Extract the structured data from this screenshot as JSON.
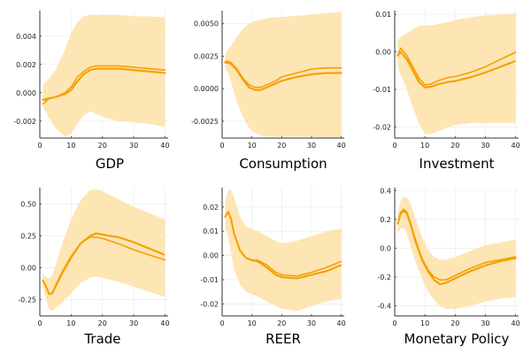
{
  "chart_data": [
    {
      "type": "line",
      "title": "",
      "xlabel": "GDP",
      "ylabel": "",
      "xlim": [
        0,
        41
      ],
      "ylim": [
        -0.0032,
        0.0058
      ],
      "xticks": [
        "0",
        "10",
        "20",
        "30",
        "40"
      ],
      "xtick_values": [
        0,
        10,
        20,
        30,
        40
      ],
      "yticks": [
        "-0.002",
        "0.000",
        "0.002",
        "0.004"
      ],
      "ytick_values": [
        -0.002,
        0,
        0.002,
        0.004
      ],
      "grid": true,
      "x": [
        1,
        3,
        5,
        8,
        10,
        12,
        14,
        16,
        18,
        20,
        25,
        30,
        35,
        40
      ],
      "series": [
        {
          "role": "median",
          "style": "solid",
          "values": [
            -0.0008,
            -0.0004,
            -0.0003,
            0.0,
            0.0004,
            0.0011,
            0.0015,
            0.0018,
            0.0019,
            0.0019,
            0.0019,
            0.0018,
            0.0017,
            0.0016
          ]
        },
        {
          "role": "estimate",
          "style": "dotted",
          "values": [
            -0.0005,
            -0.0004,
            -0.0003,
            -0.0001,
            0.0002,
            0.0008,
            0.0013,
            0.0016,
            0.0017,
            0.0017,
            0.0017,
            0.0016,
            0.0015,
            0.0014
          ]
        },
        {
          "role": "lower-band",
          "style": "band",
          "values": [
            -0.001,
            -0.0018,
            -0.0025,
            -0.0031,
            -0.0029,
            -0.0022,
            -0.0016,
            -0.0013,
            -0.0015,
            -0.0017,
            -0.002,
            -0.0021,
            -0.0022,
            -0.0024
          ]
        },
        {
          "role": "upper-band",
          "style": "band",
          "values": [
            0.0006,
            0.001,
            0.0016,
            0.003,
            0.0042,
            0.005,
            0.0054,
            0.0055,
            0.0055,
            0.0055,
            0.0055,
            0.0054,
            0.0054,
            0.0053
          ]
        }
      ]
    },
    {
      "type": "line",
      "title": "",
      "xlabel": "Consumption",
      "ylabel": "",
      "xlim": [
        0,
        41
      ],
      "ylim": [
        -0.0038,
        0.006
      ],
      "xticks": [
        "0",
        "10",
        "20",
        "30",
        "40"
      ],
      "xtick_values": [
        0,
        10,
        20,
        30,
        40
      ],
      "yticks": [
        "-0.0025",
        "0.0000",
        "0.0025",
        "0.0050"
      ],
      "ytick_values": [
        -0.0025,
        0,
        0.0025,
        0.005
      ],
      "grid": true,
      "x": [
        1,
        2,
        3,
        5,
        7,
        9,
        11,
        13,
        15,
        18,
        20,
        25,
        30,
        35,
        40
      ],
      "series": [
        {
          "role": "median",
          "style": "solid",
          "values": [
            0.0021,
            0.0021,
            0.002,
            0.0015,
            0.0008,
            0.0003,
            0.0001,
            0.0001,
            0.0003,
            0.0006,
            0.0009,
            0.0012,
            0.0015,
            0.0016,
            0.0016
          ]
        },
        {
          "role": "estimate",
          "style": "dotted",
          "values": [
            0.002,
            0.002,
            0.0019,
            0.0014,
            0.0007,
            0.0001,
            -0.0001,
            -0.0001,
            0.0001,
            0.0004,
            0.0006,
            0.0009,
            0.0011,
            0.0012,
            0.0012
          ]
        },
        {
          "role": "lower-band",
          "style": "band",
          "values": [
            0.0016,
            0.0012,
            0.0005,
            -0.001,
            -0.0022,
            -0.003,
            -0.0034,
            -0.0036,
            -0.0037,
            -0.0037,
            -0.0037,
            -0.0037,
            -0.0037,
            -0.0038,
            -0.0038
          ]
        },
        {
          "role": "upper-band",
          "style": "band",
          "values": [
            0.0027,
            0.003,
            0.0033,
            0.004,
            0.0046,
            0.005,
            0.0052,
            0.0053,
            0.0054,
            0.0055,
            0.0055,
            0.0056,
            0.0057,
            0.0058,
            0.0059
          ]
        }
      ]
    },
    {
      "type": "line",
      "title": "",
      "xlabel": "Investment",
      "ylabel": "",
      "xlim": [
        0,
        41
      ],
      "ylim": [
        -0.023,
        0.011
      ],
      "xticks": [
        "0",
        "10",
        "20",
        "30",
        "40"
      ],
      "xtick_values": [
        0,
        10,
        20,
        30,
        40
      ],
      "yticks": [
        "-0.02",
        "-0.01",
        "0.00",
        "0.01"
      ],
      "ytick_values": [
        -0.02,
        -0.01,
        0,
        0.01
      ],
      "grid": true,
      "x": [
        1,
        2,
        4,
        6,
        8,
        10,
        12,
        15,
        18,
        20,
        25,
        30,
        35,
        40
      ],
      "series": [
        {
          "role": "median",
          "style": "solid",
          "values": [
            -0.001,
            0.001,
            -0.001,
            -0.004,
            -0.007,
            -0.0088,
            -0.0086,
            -0.0075,
            -0.0068,
            -0.0066,
            -0.0055,
            -0.004,
            -0.002,
            -0.0001
          ]
        },
        {
          "role": "estimate",
          "style": "dotted",
          "values": [
            -0.001,
            0.0,
            -0.002,
            -0.005,
            -0.008,
            -0.0095,
            -0.0093,
            -0.0085,
            -0.008,
            -0.0078,
            -0.0068,
            -0.0055,
            -0.004,
            -0.0024
          ]
        },
        {
          "role": "lower-band",
          "style": "band",
          "values": [
            -0.004,
            -0.006,
            -0.01,
            -0.015,
            -0.019,
            -0.022,
            -0.022,
            -0.021,
            -0.02,
            -0.0195,
            -0.019,
            -0.019,
            -0.019,
            -0.019
          ]
        },
        {
          "role": "upper-band",
          "style": "band",
          "values": [
            0.003,
            0.004,
            0.005,
            0.006,
            0.007,
            0.007,
            0.007,
            0.0075,
            0.008,
            0.0085,
            0.0092,
            0.0097,
            0.01,
            0.0103
          ]
        }
      ]
    },
    {
      "type": "line",
      "title": "",
      "xlabel": "Trade",
      "ylabel": "",
      "xlim": [
        0,
        41
      ],
      "ylim": [
        -0.38,
        0.63
      ],
      "xticks": [
        "0",
        "10",
        "20",
        "30",
        "40"
      ],
      "xtick_values": [
        0,
        10,
        20,
        30,
        40
      ],
      "yticks": [
        "-0.25",
        "0.00",
        "0.25",
        "0.50"
      ],
      "ytick_values": [
        -0.25,
        0,
        0.25,
        0.5
      ],
      "grid": true,
      "x": [
        1,
        2,
        3,
        4,
        5,
        7,
        10,
        13,
        16,
        18,
        20,
        25,
        30,
        35,
        40
      ],
      "series": [
        {
          "role": "median",
          "style": "solid",
          "values": [
            -0.1,
            -0.15,
            -0.21,
            -0.2,
            -0.14,
            -0.04,
            0.09,
            0.19,
            0.24,
            0.24,
            0.23,
            0.19,
            0.14,
            0.1,
            0.06
          ]
        },
        {
          "role": "estimate",
          "style": "dotted",
          "values": [
            -0.1,
            -0.15,
            -0.21,
            -0.2,
            -0.15,
            -0.05,
            0.08,
            0.19,
            0.25,
            0.27,
            0.26,
            0.24,
            0.2,
            0.15,
            0.1
          ]
        },
        {
          "role": "lower-band",
          "style": "band",
          "values": [
            -0.15,
            -0.25,
            -0.33,
            -0.34,
            -0.32,
            -0.28,
            -0.2,
            -0.12,
            -0.08,
            -0.07,
            -0.08,
            -0.11,
            -0.15,
            -0.19,
            -0.23
          ]
        },
        {
          "role": "upper-band",
          "style": "band",
          "values": [
            -0.05,
            -0.07,
            -0.09,
            -0.06,
            0.02,
            0.18,
            0.38,
            0.53,
            0.61,
            0.62,
            0.6,
            0.54,
            0.48,
            0.43,
            0.38
          ]
        }
      ]
    },
    {
      "type": "line",
      "title": "",
      "xlabel": "REER",
      "ylabel": "",
      "xlim": [
        0,
        41
      ],
      "ylim": [
        -0.025,
        0.028
      ],
      "xticks": [
        "0",
        "10",
        "20",
        "30",
        "40"
      ],
      "xtick_values": [
        0,
        10,
        20,
        30,
        40
      ],
      "yticks": [
        "-0.02",
        "-0.01",
        "0.00",
        "0.01",
        "0.02"
      ],
      "ytick_values": [
        -0.02,
        -0.01,
        0,
        0.01,
        0.02
      ],
      "grid": true,
      "x": [
        1,
        2,
        3,
        4,
        6,
        8,
        10,
        12,
        15,
        18,
        20,
        25,
        30,
        35,
        40
      ],
      "series": [
        {
          "role": "median",
          "style": "solid",
          "values": [
            0.016,
            0.018,
            0.015,
            0.009,
            0.002,
            -0.001,
            -0.002,
            -0.002,
            -0.004,
            -0.007,
            -0.008,
            -0.0085,
            -0.007,
            -0.005,
            -0.0025
          ]
        },
        {
          "role": "estimate",
          "style": "dotted",
          "values": [
            0.016,
            0.018,
            0.015,
            0.009,
            0.002,
            -0.001,
            -0.002,
            -0.0025,
            -0.005,
            -0.008,
            -0.009,
            -0.0095,
            -0.008,
            -0.0065,
            -0.004
          ]
        },
        {
          "role": "lower-band",
          "style": "band",
          "values": [
            0.011,
            0.008,
            0.001,
            -0.006,
            -0.012,
            -0.015,
            -0.016,
            -0.017,
            -0.019,
            -0.021,
            -0.022,
            -0.023,
            -0.021,
            -0.019,
            -0.018
          ]
        },
        {
          "role": "upper-band",
          "style": "band",
          "values": [
            0.022,
            0.027,
            0.027,
            0.024,
            0.016,
            0.012,
            0.011,
            0.01,
            0.008,
            0.006,
            0.005,
            0.006,
            0.008,
            0.01,
            0.011
          ]
        }
      ]
    },
    {
      "type": "line",
      "title": "",
      "xlabel": "Monetary Policy",
      "ylabel": "",
      "xlim": [
        0,
        41
      ],
      "ylim": [
        -0.47,
        0.42
      ],
      "xticks": [
        "0",
        "10",
        "20",
        "30",
        "40"
      ],
      "xtick_values": [
        0,
        10,
        20,
        30,
        40
      ],
      "yticks": [
        "-0.4",
        "-0.2",
        "0.0",
        "0.2",
        "0.4"
      ],
      "ytick_values": [
        -0.4,
        -0.2,
        0,
        0.2,
        0.4
      ],
      "grid": true,
      "x": [
        1,
        2,
        3,
        4,
        5,
        7,
        9,
        11,
        13,
        15,
        17,
        20,
        25,
        30,
        35,
        40
      ],
      "series": [
        {
          "role": "median",
          "style": "solid",
          "values": [
            0.17,
            0.25,
            0.27,
            0.25,
            0.19,
            0.05,
            -0.07,
            -0.15,
            -0.2,
            -0.22,
            -0.22,
            -0.19,
            -0.14,
            -0.1,
            -0.08,
            -0.06
          ]
        },
        {
          "role": "estimate",
          "style": "dotted",
          "values": [
            0.17,
            0.24,
            0.26,
            0.24,
            0.18,
            0.04,
            -0.08,
            -0.16,
            -0.22,
            -0.25,
            -0.24,
            -0.21,
            -0.16,
            -0.12,
            -0.09,
            -0.07
          ]
        },
        {
          "role": "lower-band",
          "style": "band",
          "values": [
            0.1,
            0.14,
            0.14,
            0.1,
            0.03,
            -0.1,
            -0.21,
            -0.3,
            -0.36,
            -0.4,
            -0.42,
            -0.42,
            -0.4,
            -0.37,
            -0.35,
            -0.34
          ]
        },
        {
          "role": "upper-band",
          "style": "band",
          "values": [
            0.24,
            0.33,
            0.36,
            0.35,
            0.32,
            0.2,
            0.08,
            -0.01,
            -0.06,
            -0.08,
            -0.08,
            -0.06,
            -0.02,
            0.02,
            0.04,
            0.06
          ]
        }
      ]
    }
  ],
  "colors": {
    "line": "#f5a000",
    "band": "#fde5b4",
    "grid": "#e8e8e8",
    "axis": "#333333"
  }
}
